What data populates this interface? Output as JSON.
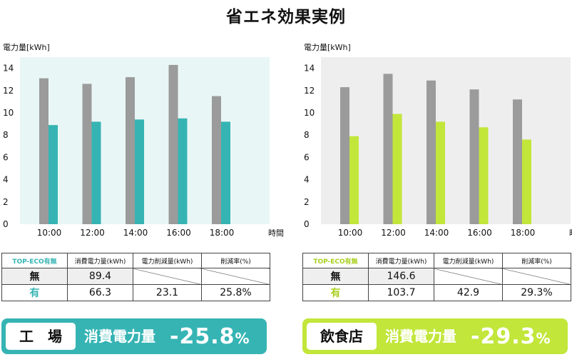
{
  "page": {
    "title": "省エネ効果実例"
  },
  "colors": {
    "gray_bar": "#9b9b9b",
    "factory_accent": "#36b4b4",
    "restaurant_accent": "#c2e63a",
    "factory_bg": "#e9f6f6",
    "restaurant_bg": "#eeeeee"
  },
  "chart_data": [
    {
      "type": "bar",
      "ylabel": "電力量[kWh]",
      "xlabel": "時間",
      "ylim": [
        0,
        15
      ],
      "yticks": [
        "0",
        "2",
        "4",
        "6",
        "8",
        "10",
        "12",
        "14"
      ],
      "categories": [
        "10:00",
        "12:00",
        "14:00",
        "16:00",
        "18:00"
      ],
      "series": [
        {
          "values": [
            13.1,
            12.6,
            13.2,
            14.3,
            11.5
          ]
        },
        {
          "values": [
            8.9,
            9.2,
            9.4,
            9.5,
            9.2
          ]
        }
      ],
      "grid": false
    },
    {
      "type": "bar",
      "ylabel": "電力量[kWh]",
      "xlabel": "時間",
      "ylim": [
        0,
        15
      ],
      "yticks": [
        "0",
        "2",
        "4",
        "6",
        "8",
        "10",
        "12",
        "14"
      ],
      "categories": [
        "10:00",
        "12:00",
        "14:00",
        "16:00",
        "18:00"
      ],
      "series": [
        {
          "values": [
            12.3,
            13.5,
            12.9,
            12.1,
            11.2
          ]
        },
        {
          "values": [
            7.9,
            9.9,
            9.2,
            8.7,
            7.6
          ]
        }
      ],
      "grid": false
    }
  ],
  "tables": [
    {
      "header": [
        "TOP-ECO有無",
        "消費電力量(kWh)",
        "電力削減量(kWh)",
        "削減率(%)"
      ],
      "rows": [
        {
          "label": "無",
          "consumption": "89.4",
          "reduction": "",
          "rate": ""
        },
        {
          "label": "有",
          "consumption": "66.3",
          "reduction": "23.1",
          "rate": "25.8%"
        }
      ]
    },
    {
      "header": [
        "TOP-ECO有無",
        "消費電力量(kWh)",
        "電力削減量(kWh)",
        "削減率(%)"
      ],
      "rows": [
        {
          "label": "無",
          "consumption": "146.6",
          "reduction": "",
          "rate": ""
        },
        {
          "label": "有",
          "consumption": "103.7",
          "reduction": "42.9",
          "rate": "29.3%"
        }
      ]
    }
  ],
  "banners": [
    {
      "label": "工　場",
      "subtitle": "消費電力量",
      "value": "-25.8",
      "unit": "%"
    },
    {
      "label": "飲食店",
      "subtitle": "消費電力量",
      "value": "-29.3",
      "unit": "%"
    }
  ]
}
